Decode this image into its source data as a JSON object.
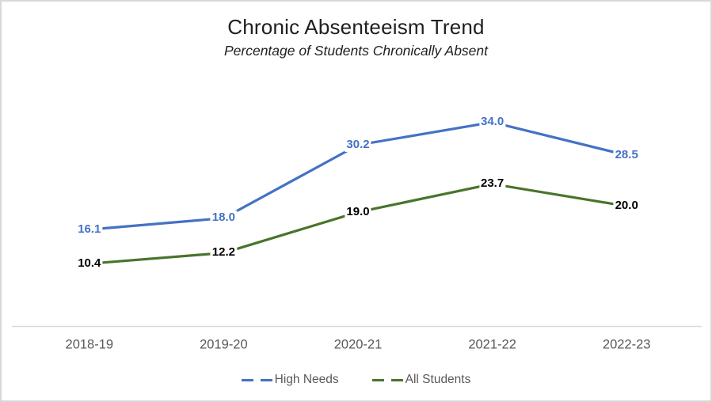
{
  "chart_data": {
    "type": "line",
    "title": "Chronic Absenteeism Trend",
    "subtitle": "Percentage of Students Chronically Absent",
    "categories": [
      "2018-19",
      "2019-20",
      "2020-21",
      "2021-22",
      "2022-23"
    ],
    "series": [
      {
        "name": "High Needs",
        "values": [
          16.1,
          18.0,
          30.2,
          34.0,
          28.5
        ],
        "color": "#4472C4",
        "label_color": "#4472C4"
      },
      {
        "name": "All Students",
        "values": [
          10.4,
          12.2,
          19.0,
          23.7,
          20.0
        ],
        "color": "#49742C",
        "label_color": "#000000"
      }
    ],
    "ylim": [
      0,
      40
    ],
    "label_decimals": 1,
    "data_labels": "centered-on-point-white-fill",
    "grid": false,
    "y_axis_visible": false,
    "legend_position": "bottom",
    "axis_color": "#D9D9D9",
    "tick_label_color": "#595959"
  }
}
